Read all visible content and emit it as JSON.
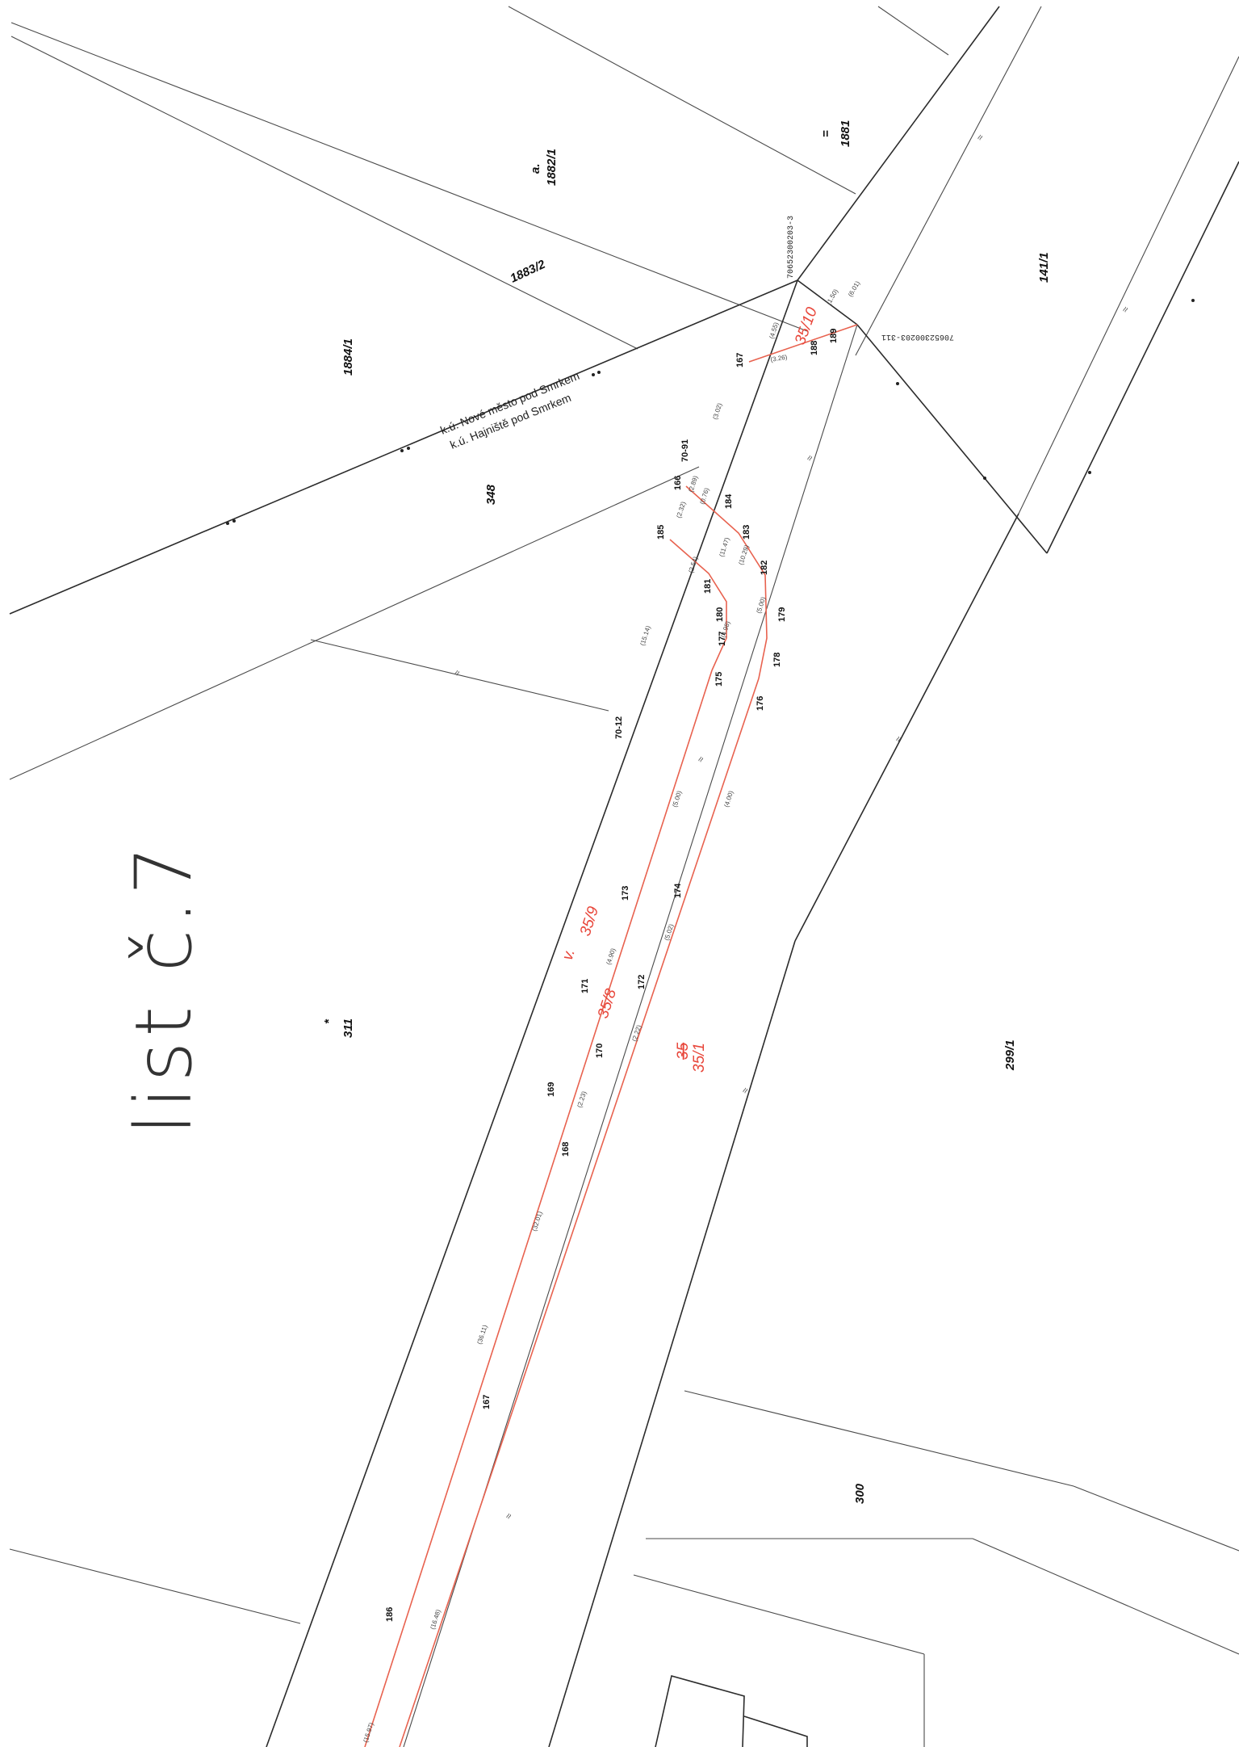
{
  "sheet_title": "list č.7",
  "cadastral_areas": {
    "upper": "k.ú. Nové město pod Smrkem",
    "lower": "k.ú. Hajniště pod Smrkem"
  },
  "colors": {
    "existing_lines": "#2b2b2b",
    "new_boundaries": "#e8624f",
    "new_labels": "#e8463a"
  },
  "parcels": {
    "p1882_1_letter": "a.",
    "p1882_1": "1882/1",
    "p1881_mark": "=",
    "p1881": "1881",
    "p1883_2": "1883/2",
    "p1884_1": "1884/1",
    "p141_1": "141/1",
    "p348": "348",
    "p311_mark": "*",
    "p311": "311",
    "p299_1": "299/1",
    "p300": "300"
  },
  "new_parcels": {
    "p35_10": "35/10",
    "p35_9_mark": "v.",
    "p35_9": "35/9",
    "p35_8": "35/8",
    "p35_old": "35",
    "p35_1": "35/1"
  },
  "survey_codes": {
    "code_a": "70652300203-3",
    "code_b": "70652300203-311"
  },
  "points": {
    "p70_91": "70-91",
    "p70_12": "70-12",
    "p166": "166",
    "p167_top": "167",
    "p185": "185",
    "p184": "184",
    "p183": "183",
    "p182": "182",
    "p181": "181",
    "p180": "180",
    "p179": "179",
    "p178": "178",
    "p177": "177",
    "p176": "176",
    "p175": "175",
    "p174": "174",
    "p173": "173",
    "p172": "172",
    "p171": "171",
    "p170": "170",
    "p169": "169",
    "p168": "168",
    "p167": "167",
    "p186": "186",
    "p188": "188",
    "p189": "189"
  },
  "dimensions": {
    "d1": "(4.55)",
    "d2": "(3.26)",
    "d3": "(1.50)",
    "d4": "(6.01)",
    "d5": "(3.02)",
    "d6": "(2.89)",
    "d7": "(0.76)",
    "d8": "(2.32)",
    "d9": "(15.14)",
    "d10": "(2.54)",
    "d11": "(11.47)",
    "d12": "(10.29)",
    "d13": "(5.00)",
    "d14": "(4.98)",
    "d15": "(5.00)",
    "d16": "(4.00)",
    "d17": "(4.90)",
    "d18": "(5.02)",
    "d19": "(36.11)",
    "d20": "(32.01)",
    "d21": "(16.48)",
    "d22": "(15.97)",
    "d23": "(2.22)",
    "d24": "(2.23)"
  }
}
